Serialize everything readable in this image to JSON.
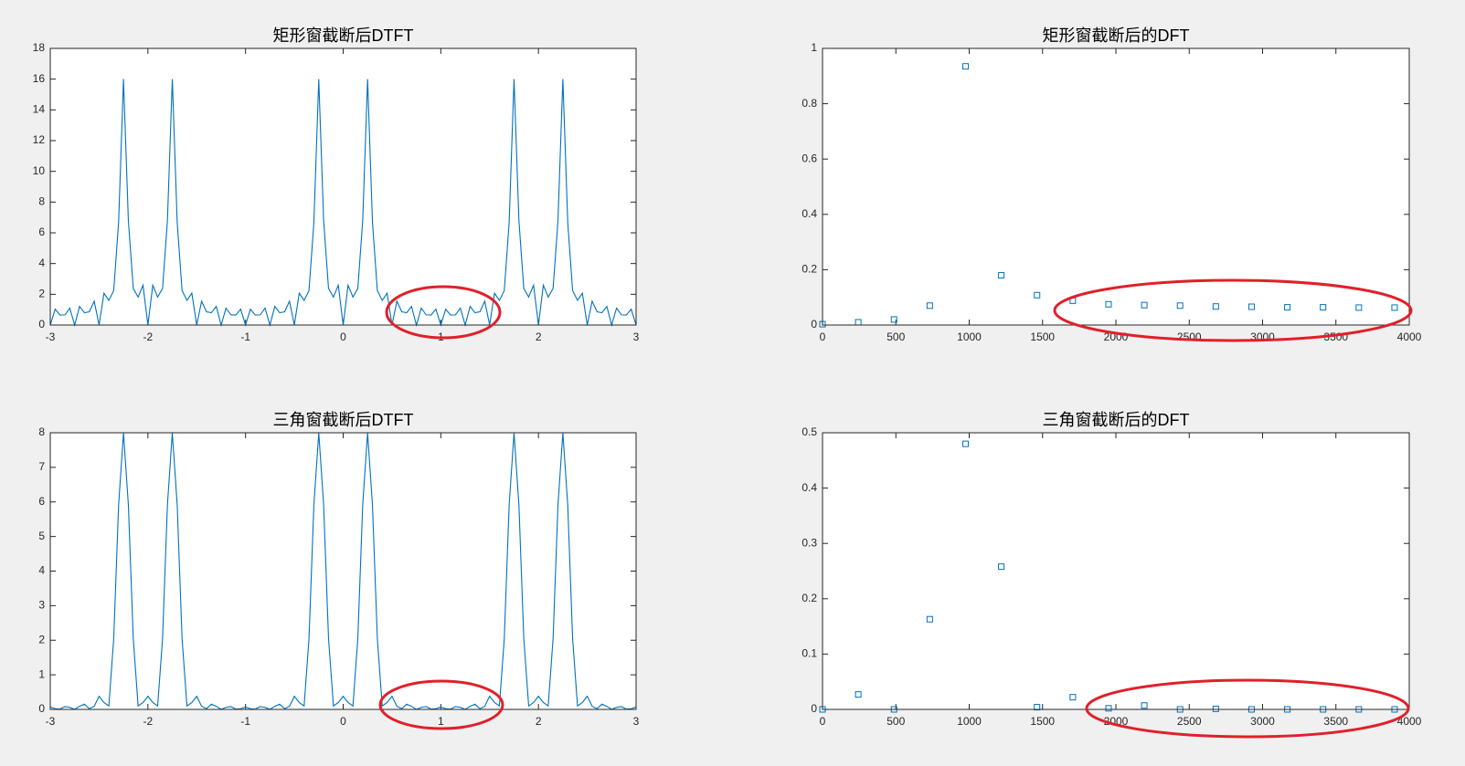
{
  "chart_data": [
    {
      "type": "line",
      "title": "矩形窗截断后DTFT",
      "color": "#0072bd",
      "x": [
        -3,
        -2.95,
        -2.9,
        -2.85,
        -2.8,
        -2.75,
        -2.7,
        -2.65,
        -2.6,
        -2.55,
        -2.5,
        -2.45,
        -2.4,
        -2.35,
        -2.3,
        -2.25,
        -2.2,
        -2.15,
        -2.1,
        -2.05,
        -2,
        -1.95,
        -1.9,
        -1.85,
        -1.8,
        -1.75,
        -1.7,
        -1.65,
        -1.6,
        -1.55,
        -1.5,
        -1.45,
        -1.4,
        -1.35,
        -1.3,
        -1.25,
        -1.2,
        -1.15,
        -1.1,
        -1.05,
        -1,
        -0.95,
        -0.9,
        -0.85,
        -0.8,
        -0.75,
        -0.7,
        -0.65,
        -0.6,
        -0.55,
        -0.5,
        -0.45,
        -0.4,
        -0.35,
        -0.3,
        -0.25,
        -0.2,
        -0.15,
        -0.1,
        -0.05,
        0,
        0.05,
        0.1,
        0.15,
        0.2,
        0.25,
        0.3,
        0.35,
        0.4,
        0.45,
        0.5,
        0.55,
        0.6,
        0.65,
        0.7,
        0.75,
        0.8,
        0.85,
        0.9,
        0.95,
        1,
        1.05,
        1.1,
        1.15,
        1.2,
        1.25,
        1.3,
        1.35,
        1.4,
        1.45,
        1.5,
        1.55,
        1.6,
        1.65,
        1.7,
        1.75,
        1.8,
        1.85,
        1.9,
        1.95,
        2,
        2.05,
        2.1,
        2.15,
        2.2,
        2.25,
        2.3,
        2.35,
        2.4,
        2.45,
        2.5,
        2.55,
        2.6,
        2.65,
        2.7,
        2.75,
        2.8,
        2.85,
        2.9,
        2.95,
        3
      ],
      "values": [
        0,
        1.03,
        0.65,
        0.66,
        1.1,
        0,
        1.21,
        0.8,
        0.86,
        1.55,
        0,
        2.07,
        1.6,
        2.24,
        6.68,
        16,
        6.79,
        2.38,
        1.82,
        2.59,
        0,
        2.59,
        1.82,
        2.38,
        6.79,
        16,
        6.68,
        2.24,
        1.6,
        2.07,
        0,
        1.55,
        0.86,
        0.8,
        1.21,
        0,
        1.1,
        0.66,
        0.65,
        1.03,
        0,
        1.03,
        0.65,
        0.66,
        1.1,
        0,
        1.21,
        0.8,
        0.86,
        1.55,
        0,
        2.07,
        1.6,
        2.24,
        6.68,
        16,
        6.79,
        2.38,
        1.82,
        2.59,
        0,
        2.59,
        1.82,
        2.38,
        6.79,
        16,
        6.68,
        2.24,
        1.6,
        2.07,
        0,
        1.55,
        0.86,
        0.8,
        1.21,
        0,
        1.1,
        0.66,
        0.65,
        1.03,
        0,
        1.03,
        0.65,
        0.66,
        1.1,
        0,
        1.21,
        0.8,
        0.86,
        1.55,
        0,
        2.07,
        1.6,
        2.24,
        6.68,
        16,
        6.79,
        2.38,
        1.82,
        2.59,
        0,
        2.59,
        1.82,
        2.38,
        6.79,
        16,
        6.68,
        2.24,
        1.6,
        2.07,
        0,
        1.55,
        0.86,
        0.8,
        1.21,
        0,
        1.1,
        0.66,
        0.65,
        1.03,
        0
      ],
      "xlim": [
        -3,
        3
      ],
      "xticks": [
        -3,
        -2,
        -1,
        0,
        1,
        2,
        3
      ],
      "ylim": [
        0,
        18
      ],
      "yticks": [
        0,
        2,
        4,
        6,
        8,
        10,
        12,
        14,
        16,
        18
      ]
    },
    {
      "type": "scatter",
      "title": "矩形窗截断后的DFT",
      "color": "#0072bd",
      "x": [
        0,
        243.75,
        487.5,
        731.25,
        975,
        1218.75,
        1462.5,
        1706.25,
        1950,
        2193.75,
        2437.5,
        2681.25,
        2925,
        3168.75,
        3412.5,
        3656.25,
        3900
      ],
      "values": [
        0.003,
        0.01,
        0.02,
        0.07,
        0.935,
        0.18,
        0.108,
        0.088,
        0.075,
        0.072,
        0.07,
        0.067,
        0.066,
        0.064,
        0.064,
        0.063,
        0.063
      ],
      "xlim": [
        0,
        4000
      ],
      "xticks": [
        0,
        500,
        1000,
        1500,
        2000,
        2500,
        3000,
        3500,
        4000
      ],
      "ylim": [
        0,
        1
      ],
      "yticks": [
        0,
        0.2,
        0.4,
        0.6,
        0.8,
        1
      ]
    },
    {
      "type": "line",
      "title": "三角窗截断后DTFT",
      "color": "#0072bd",
      "x": [
        -3,
        -2.95,
        -2.9,
        -2.85,
        -2.8,
        -2.75,
        -2.7,
        -2.65,
        -2.6,
        -2.55,
        -2.5,
        -2.45,
        -2.4,
        -2.35,
        -2.3,
        -2.25,
        -2.2,
        -2.15,
        -2.1,
        -2.05,
        -2,
        -1.95,
        -1.9,
        -1.85,
        -1.8,
        -1.75,
        -1.7,
        -1.65,
        -1.6,
        -1.55,
        -1.5,
        -1.45,
        -1.4,
        -1.35,
        -1.3,
        -1.25,
        -1.2,
        -1.15,
        -1.1,
        -1.05,
        -1,
        -0.95,
        -0.9,
        -0.85,
        -0.8,
        -0.75,
        -0.7,
        -0.65,
        -0.6,
        -0.55,
        -0.5,
        -0.45,
        -0.4,
        -0.35,
        -0.3,
        -0.25,
        -0.2,
        -0.15,
        -0.1,
        -0.05,
        0,
        0.05,
        0.1,
        0.15,
        0.2,
        0.25,
        0.3,
        0.35,
        0.4,
        0.45,
        0.5,
        0.55,
        0.6,
        0.65,
        0.7,
        0.75,
        0.8,
        0.85,
        0.9,
        0.95,
        1,
        1.05,
        1.1,
        1.15,
        1.2,
        1.25,
        1.3,
        1.35,
        1.4,
        1.45,
        1.5,
        1.55,
        1.6,
        1.65,
        1.7,
        1.75,
        1.8,
        1.85,
        1.9,
        1.95,
        2,
        2.05,
        2.1,
        2.15,
        2.2,
        2.25,
        2.3,
        2.35,
        2.4,
        2.45,
        2.5,
        2.55,
        2.6,
        2.65,
        2.7,
        2.75,
        2.8,
        2.85,
        2.9,
        2.95,
        3
      ],
      "values": [
        0.07,
        0.02,
        0.01,
        0.08,
        0.06,
        0,
        0.09,
        0.15,
        0.02,
        0.09,
        0.38,
        0.2,
        0.1,
        2.05,
        5.91,
        8,
        5.91,
        2.05,
        0.1,
        0.2,
        0.38,
        0.2,
        0.1,
        2.05,
        5.91,
        8,
        5.91,
        2.05,
        0.1,
        0.2,
        0.38,
        0.09,
        0.02,
        0.15,
        0.09,
        0,
        0.06,
        0.08,
        0.01,
        0.02,
        0.07,
        0.02,
        0.01,
        0.08,
        0.06,
        0,
        0.09,
        0.15,
        0.02,
        0.09,
        0.38,
        0.2,
        0.1,
        2.05,
        5.91,
        8,
        5.91,
        2.05,
        0.1,
        0.2,
        0.38,
        0.2,
        0.1,
        2.05,
        5.91,
        8,
        5.91,
        2.05,
        0.1,
        0.2,
        0.38,
        0.09,
        0.02,
        0.15,
        0.09,
        0,
        0.06,
        0.08,
        0.01,
        0.02,
        0.07,
        0.02,
        0.01,
        0.08,
        0.06,
        0,
        0.09,
        0.15,
        0.02,
        0.09,
        0.38,
        0.2,
        0.1,
        2.05,
        5.91,
        8,
        5.91,
        2.05,
        0.1,
        0.2,
        0.38,
        0.2,
        0.1,
        2.05,
        5.91,
        8,
        5.91,
        2.05,
        0.1,
        0.2,
        0.38,
        0.09,
        0.02,
        0.15,
        0.09,
        0,
        0.06,
        0.08,
        0.01,
        0.02,
        0.07
      ],
      "xlim": [
        -3,
        3
      ],
      "xticks": [
        -3,
        -2,
        -1,
        0,
        1,
        2,
        3
      ],
      "ylim": [
        0,
        8
      ],
      "yticks": [
        0,
        1,
        2,
        3,
        4,
        5,
        6,
        7,
        8
      ]
    },
    {
      "type": "scatter",
      "title": "三角窗截断后的DFT",
      "color": "#0072bd",
      "x": [
        0,
        243.75,
        487.5,
        731.25,
        975,
        1218.75,
        1462.5,
        1706.25,
        1950,
        2193.75,
        2437.5,
        2681.25,
        2925,
        3168.75,
        3412.5,
        3656.25,
        3900
      ],
      "values": [
        0,
        0.027,
        0,
        0.163,
        0.48,
        0.258,
        0.004,
        0.022,
        0.002,
        0.007,
        0,
        0.001,
        0,
        0,
        0,
        0,
        0
      ],
      "xlim": [
        0,
        4000
      ],
      "xticks": [
        0,
        500,
        1000,
        1500,
        2000,
        2500,
        3000,
        3500,
        4000
      ],
      "ylim": [
        0,
        0.5
      ],
      "yticks": [
        0,
        0.1,
        0.2,
        0.3,
        0.4,
        0.5
      ]
    }
  ]
}
